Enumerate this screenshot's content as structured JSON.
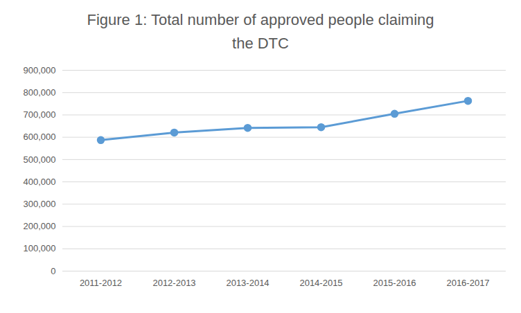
{
  "chart_data": {
    "type": "line",
    "title": "Figure 1: Total number of approved people claiming the DTC",
    "categories": [
      "2011-2012",
      "2012-2013",
      "2013-2014",
      "2014-2015",
      "2015-2016",
      "2016-2017"
    ],
    "values": [
      587000,
      621000,
      642000,
      645000,
      705000,
      763000
    ],
    "color": "#5b9bd5",
    "marker": "circle",
    "ylim": [
      0,
      900000
    ],
    "yticks": [
      0,
      {
        "value": 100000,
        "label": "100,000"
      },
      {
        "value": 200000,
        "label": "200,000"
      },
      {
        "value": 300000,
        "label": "300,000"
      },
      {
        "value": 400000,
        "label": "400,000"
      },
      {
        "value": 500000,
        "label": "500,000"
      },
      {
        "value": 600000,
        "label": "600,000"
      },
      {
        "value": 700000,
        "label": "700,000"
      },
      {
        "value": 800000,
        "label": "800,000"
      },
      {
        "value": 900000,
        "label": "900,000"
      }
    ],
    "grid": true
  }
}
